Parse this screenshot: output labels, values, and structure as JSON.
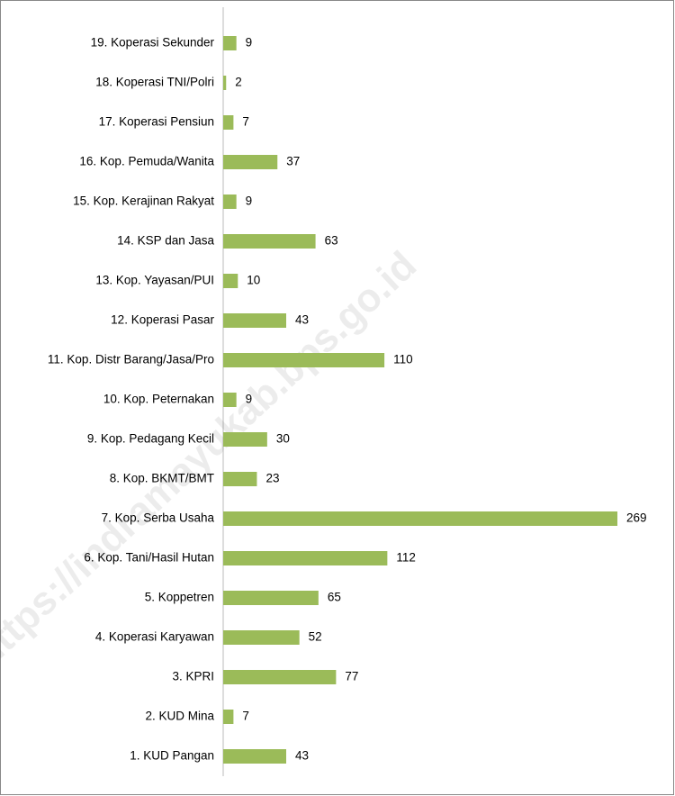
{
  "chart_data": {
    "type": "barh",
    "categories": [
      "1. KUD Pangan",
      "2. KUD Mina",
      "3. KPRI",
      "4. Koperasi Karyawan",
      "5. Koppetren",
      "6. Kop. Tani/Hasil Hutan",
      "7. Kop. Serba Usaha",
      "8. Kop. BKMT/BMT",
      "9. Kop. Pedagang Kecil",
      "10. Kop. Peternakan",
      "11. Kop. Distr Barang/Jasa/Pro",
      "12. Koperasi Pasar",
      "13. Kop. Yayasan/PUI",
      "14. KSP dan Jasa",
      "15. Kop. Kerajinan Rakyat",
      "16. Kop. Pemuda/Wanita",
      "17. Koperasi Pensiun",
      "18. Koperasi TNI/Polri",
      "19. Koperasi Sekunder"
    ],
    "values": [
      43,
      7,
      77,
      52,
      65,
      112,
      269,
      23,
      30,
      9,
      110,
      43,
      10,
      63,
      9,
      37,
      7,
      2,
      9
    ],
    "color": "#9bbb59",
    "watermark": "https://indramayukab.bps.go.id"
  }
}
